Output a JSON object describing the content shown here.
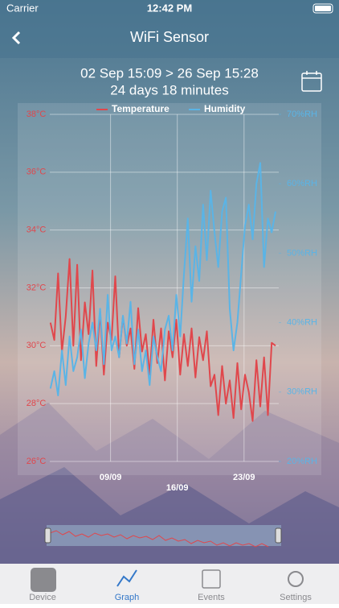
{
  "status_bar": {
    "carrier": "Carrier",
    "time": "12:42 PM"
  },
  "nav": {
    "title": "WiFi Sensor"
  },
  "header": {
    "range": "02 Sep 15:09 > 26 Sep 15:28",
    "duration": "24 days 18 minutes"
  },
  "chart_data": {
    "type": "line",
    "x": [
      2.7,
      3.1,
      3.5,
      3.9,
      4.3,
      4.7,
      5.1,
      5.5,
      5.9,
      6.3,
      6.7,
      7.1,
      7.5,
      7.9,
      8.3,
      8.7,
      9.1,
      9.5,
      9.9,
      10.3,
      10.7,
      11.1,
      11.5,
      11.9,
      12.3,
      12.7,
      13.1,
      13.5,
      13.9,
      14.3,
      14.7,
      15.1,
      15.5,
      15.9,
      16.3,
      16.7,
      17.1,
      17.5,
      17.9,
      18.3,
      18.7,
      19.1,
      19.5,
      19.9,
      20.3,
      20.7,
      21.1,
      21.5,
      21.9,
      22.3,
      22.7,
      23.1,
      23.5,
      23.9,
      24.3,
      24.7,
      25.1,
      25.5,
      25.9,
      26.3
    ],
    "series": [
      {
        "name": "Temperature",
        "color": "#e0474c",
        "values": [
          30.8,
          30.2,
          32.5,
          29.8,
          31.0,
          33.0,
          30.0,
          32.8,
          29.5,
          31.5,
          30.4,
          32.6,
          29.3,
          31.2,
          29.0,
          30.8,
          30.2,
          32.4,
          29.6,
          31.0,
          30.0,
          30.6,
          29.2,
          31.3,
          29.8,
          30.4,
          29.0,
          30.9,
          29.4,
          30.6,
          28.8,
          30.5,
          29.6,
          30.9,
          29.0,
          30.4,
          29.3,
          30.6,
          28.9,
          30.3,
          29.5,
          30.5,
          28.6,
          29.0,
          27.6,
          29.3,
          28.0,
          28.8,
          27.5,
          29.4,
          27.8,
          29.0,
          28.4,
          27.4,
          29.5,
          27.9,
          29.6,
          27.6,
          30.1,
          30.0
        ]
      },
      {
        "name": "Humidity",
        "color": "#5ab4e6",
        "axis": "y2",
        "values": [
          30.5,
          33.0,
          29.5,
          36,
          31,
          38,
          33,
          35,
          39,
          32,
          37,
          40,
          36,
          42,
          34,
          44,
          36,
          38,
          35,
          41,
          37,
          43,
          34,
          39,
          33,
          36,
          31,
          38,
          35,
          33,
          39,
          41,
          36,
          44,
          38,
          47,
          55,
          43,
          51,
          46,
          57,
          49,
          59,
          53,
          48,
          56,
          58,
          42,
          36,
          40,
          47,
          54,
          57,
          52,
          60,
          63,
          48,
          55,
          53,
          56
        ]
      }
    ],
    "xlim": [
      2.63,
      26.64
    ],
    "xticks": [
      {
        "value": 9,
        "label": "09/09"
      },
      {
        "value": 16,
        "label": "16/09"
      },
      {
        "value": 23,
        "label": "23/09"
      }
    ],
    "ylim": [
      26,
      38
    ],
    "yticks": [
      {
        "value": 26,
        "label": "26°C"
      },
      {
        "value": 28,
        "label": "28°C"
      },
      {
        "value": 30,
        "label": "30°C"
      },
      {
        "value": 32,
        "label": "32°C"
      },
      {
        "value": 34,
        "label": "34°C"
      },
      {
        "value": 36,
        "label": "36°C"
      },
      {
        "value": 38,
        "label": "38°C"
      }
    ],
    "y2lim": [
      20,
      70
    ],
    "y2ticks": [
      {
        "value": 20,
        "label": "20%RH"
      },
      {
        "value": 30,
        "label": "30%RH"
      },
      {
        "value": 40,
        "label": "40%RH"
      },
      {
        "value": 50,
        "label": "50%RH"
      },
      {
        "value": 60,
        "label": "60%RH"
      },
      {
        "value": 70,
        "label": "70%RH"
      }
    ],
    "grid": true,
    "legend": "top"
  },
  "tabs": [
    "Device",
    "Graph",
    "Events",
    "Settings"
  ]
}
